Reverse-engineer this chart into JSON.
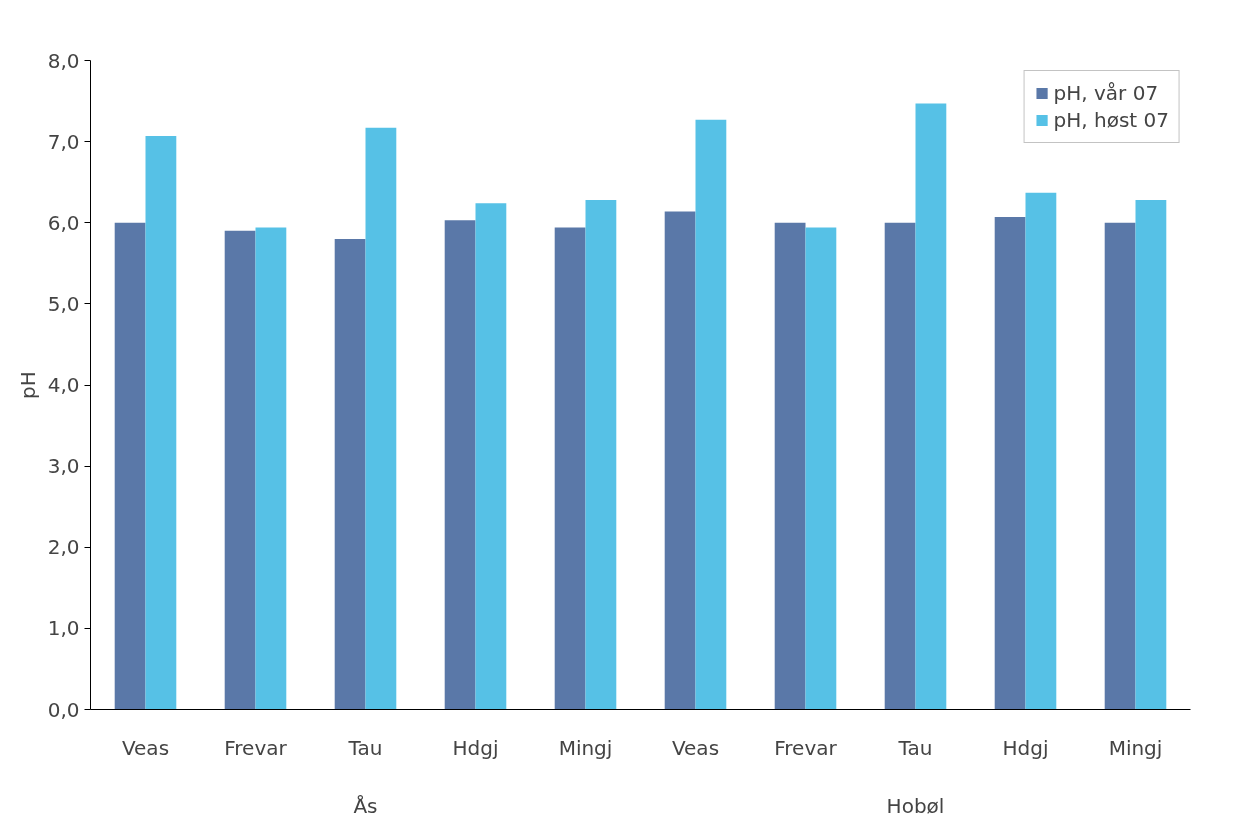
{
  "chart_data": {
    "type": "bar",
    "ylabel": "pH",
    "categories": [
      "Veas",
      "Frevar",
      "Tau",
      "Hdgj",
      "Mingj",
      "Veas",
      "Frevar",
      "Tau",
      "Hdgj",
      "Mingj"
    ],
    "series": [
      {
        "name": "pH, vår 07",
        "color": "#5a78a8",
        "values": [
          6.0,
          5.9,
          5.8,
          6.03,
          5.94,
          6.14,
          6.0,
          6.0,
          6.07,
          6.0
        ]
      },
      {
        "name": "pH, høst 07",
        "color": "#56c1e6",
        "values": [
          7.07,
          5.94,
          7.17,
          6.24,
          6.28,
          7.27,
          5.94,
          7.47,
          6.37,
          6.28
        ]
      }
    ],
    "annotations": [
      "Ås",
      "Hobøl"
    ],
    "ylim": [
      0,
      8
    ],
    "yticks": [
      {
        "value": 0,
        "label": "0,0"
      },
      {
        "value": 1,
        "label": "1,0"
      },
      {
        "value": 2,
        "label": "2,0"
      },
      {
        "value": 3,
        "label": "3,0"
      },
      {
        "value": 4,
        "label": "4,0"
      },
      {
        "value": 5,
        "label": "5,0"
      },
      {
        "value": 6,
        "label": "6,0"
      },
      {
        "value": 7,
        "label": "7,0"
      },
      {
        "value": 8,
        "label": "8,0"
      }
    ],
    "grid": false,
    "legend": "top right"
  }
}
